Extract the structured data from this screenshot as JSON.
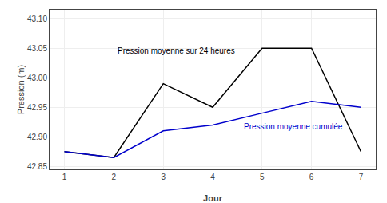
{
  "chart_data": {
    "type": "line",
    "x": [
      1,
      2,
      3,
      4,
      5,
      6,
      7
    ],
    "series": [
      {
        "name": "Pression moyenne sur 24 heures",
        "color": "#000000",
        "values": [
          42.875,
          42.865,
          42.99,
          42.95,
          43.05,
          43.05,
          42.875
        ]
      },
      {
        "name": "Pression moyenne cumulée",
        "color": "#0000cc",
        "values": [
          42.875,
          42.865,
          42.91,
          42.92,
          42.94,
          42.96,
          42.95
        ]
      }
    ],
    "annotations": [
      {
        "text": "Pression moyenne sur 24 heures",
        "x": 2.05,
        "y": 43.035,
        "color": "#000000"
      },
      {
        "text": "Pression moyenne cumulée",
        "x": 4.6,
        "y": 42.928,
        "color": "#0000cc"
      }
    ],
    "xlabel": "Jour",
    "ylabel": "Pression (m)",
    "xlim": [
      0.7,
      7.3
    ],
    "xticks": [
      1,
      2,
      3,
      4,
      5,
      6,
      7
    ],
    "ylim": [
      42.845,
      43.115
    ],
    "yticks": [
      42.85,
      {
        "value": 42.9,
        "label": "42.90"
      },
      42.95,
      {
        "value": 43,
        "label": "43.00"
      },
      43.05,
      {
        "value": 43.1,
        "label": "43.10"
      }
    ],
    "grid": true
  }
}
